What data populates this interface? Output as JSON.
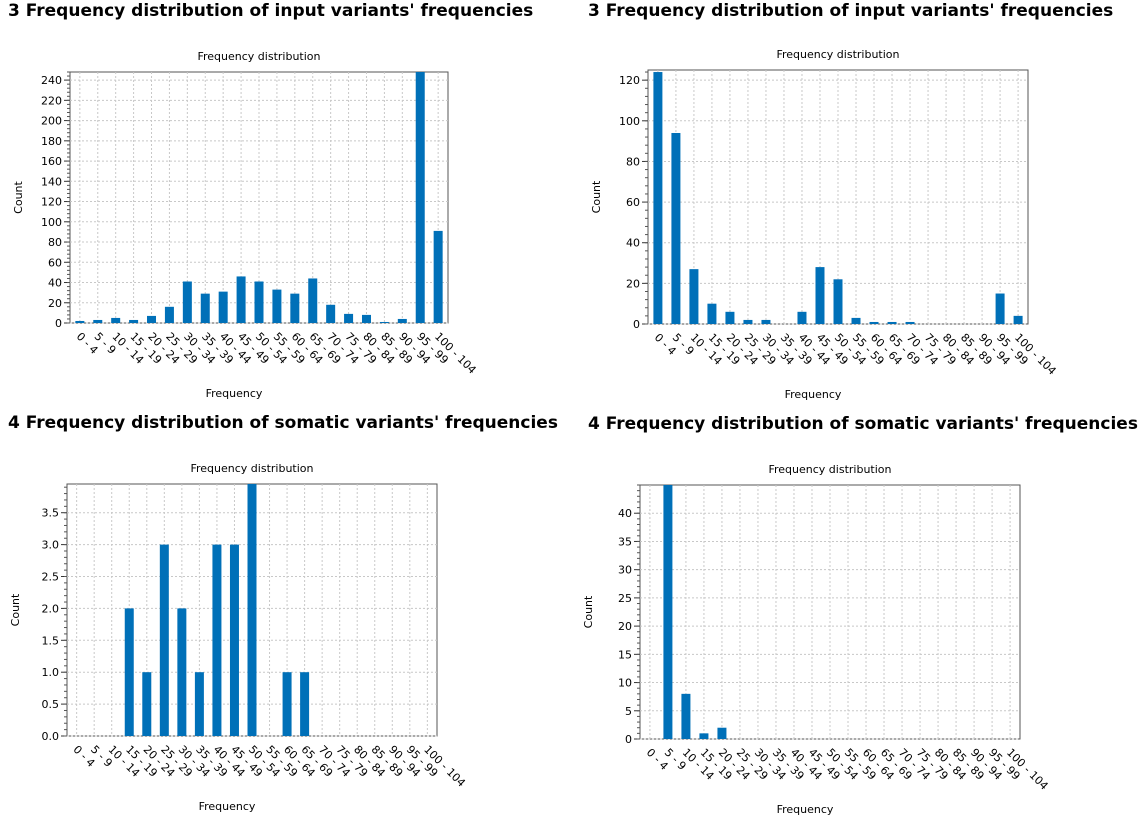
{
  "headings": [
    "3 Frequency distribution of input variants' frequencies",
    "3 Frequency distribution of input variants' frequencies",
    "4 Frequency distribution of somatic variants' frequencies",
    "4 Frequency distribution of somatic variants' frequencies"
  ],
  "colors": {
    "bar": "#0070b8",
    "grid": "#c8c8c8"
  },
  "chart_data": [
    {
      "type": "bar",
      "title": "Frequency distribution",
      "xlabel": "Frequency",
      "ylabel": "Count",
      "categories": [
        "0 - 4",
        "5 - 9",
        "10 - 14",
        "15 - 19",
        "20 - 24",
        "25 - 29",
        "30 - 34",
        "35 - 39",
        "40 - 44",
        "45 - 49",
        "50 - 54",
        "55 - 59",
        "60 - 64",
        "65 - 69",
        "70 - 74",
        "75 - 79",
        "80 - 84",
        "85 - 89",
        "90 - 94",
        "95 - 99",
        "100 - 104"
      ],
      "values": [
        2,
        3,
        5,
        3,
        7,
        16,
        41,
        29,
        31,
        46,
        41,
        33,
        29,
        44,
        18,
        9,
        8,
        1,
        4,
        248,
        91
      ],
      "ylim": [
        0,
        248
      ],
      "yticks": [
        0,
        20,
        40,
        60,
        80,
        100,
        120,
        140,
        160,
        180,
        200,
        220,
        240
      ],
      "ytick_labels": [
        "0",
        "20",
        "40",
        "60",
        "80",
        "100",
        "120",
        "140",
        "160",
        "180",
        "200",
        "220",
        "240"
      ],
      "grid": true
    },
    {
      "type": "bar",
      "title": "Frequency distribution",
      "xlabel": "Frequency",
      "ylabel": "Count",
      "categories": [
        "0 - 4",
        "5 - 9",
        "10 - 14",
        "15 - 19",
        "20 - 24",
        "25 - 29",
        "30 - 34",
        "35 - 39",
        "40 - 44",
        "45 - 49",
        "50 - 54",
        "55 - 59",
        "60 - 64",
        "65 - 69",
        "70 - 74",
        "75 - 79",
        "80 - 84",
        "85 - 89",
        "90 - 94",
        "95 - 99",
        "100 - 104"
      ],
      "values": [
        124,
        94,
        27,
        10,
        6,
        2,
        2,
        0,
        6,
        28,
        22,
        3,
        1,
        1,
        1,
        0,
        0,
        0,
        0,
        15,
        4
      ],
      "ylim": [
        0,
        125
      ],
      "yticks": [
        0,
        20,
        40,
        60,
        80,
        100,
        120
      ],
      "ytick_labels": [
        "0",
        "20",
        "40",
        "60",
        "80",
        "100",
        "120"
      ],
      "grid": true
    },
    {
      "type": "bar",
      "title": "Frequency distribution",
      "xlabel": "Frequency",
      "ylabel": "Count",
      "categories": [
        "0 - 4",
        "5 - 9",
        "10 - 14",
        "15 - 19",
        "20 - 24",
        "25 - 29",
        "30 - 34",
        "35 - 39",
        "40 - 44",
        "45 - 49",
        "50 - 54",
        "55 - 59",
        "60 - 64",
        "65 - 69",
        "70 - 74",
        "75 - 79",
        "80 - 84",
        "85 - 89",
        "90 - 94",
        "95 - 99",
        "100 - 104"
      ],
      "values": [
        0,
        0,
        0,
        2,
        1,
        3,
        2,
        1,
        3,
        3,
        4,
        0,
        1,
        1,
        0,
        0,
        0,
        0,
        0,
        0,
        0
      ],
      "ylim": [
        0,
        3.95
      ],
      "yticks": [
        0,
        0.5,
        1,
        1.5,
        2,
        2.5,
        3,
        3.5
      ],
      "ytick_labels": [
        "0.0",
        "0.5",
        "1.0",
        "1.5",
        "2.0",
        "2.5",
        "3.0",
        "3.5"
      ],
      "grid": true
    },
    {
      "type": "bar",
      "title": "Frequency distribution",
      "xlabel": "Frequency",
      "ylabel": "Count",
      "categories": [
        "0 - 4",
        "5 - 9",
        "10 - 14",
        "15 - 19",
        "20 - 24",
        "25 - 29",
        "30 - 34",
        "35 - 39",
        "40 - 44",
        "45 - 49",
        "50 - 54",
        "55 - 59",
        "60 - 64",
        "65 - 69",
        "70 - 74",
        "75 - 79",
        "80 - 84",
        "85 - 89",
        "90 - 94",
        "95 - 99",
        "100 - 104"
      ],
      "values": [
        0,
        45,
        8,
        1,
        2,
        0,
        0,
        0,
        0,
        0,
        0,
        0,
        0,
        0,
        0,
        0,
        0,
        0,
        0,
        0,
        0
      ],
      "ylim": [
        0,
        45
      ],
      "yticks": [
        0,
        5,
        10,
        15,
        20,
        25,
        30,
        35,
        40
      ],
      "ytick_labels": [
        "0",
        "5",
        "10",
        "15",
        "20",
        "25",
        "30",
        "35",
        "40"
      ],
      "grid": true
    }
  ]
}
